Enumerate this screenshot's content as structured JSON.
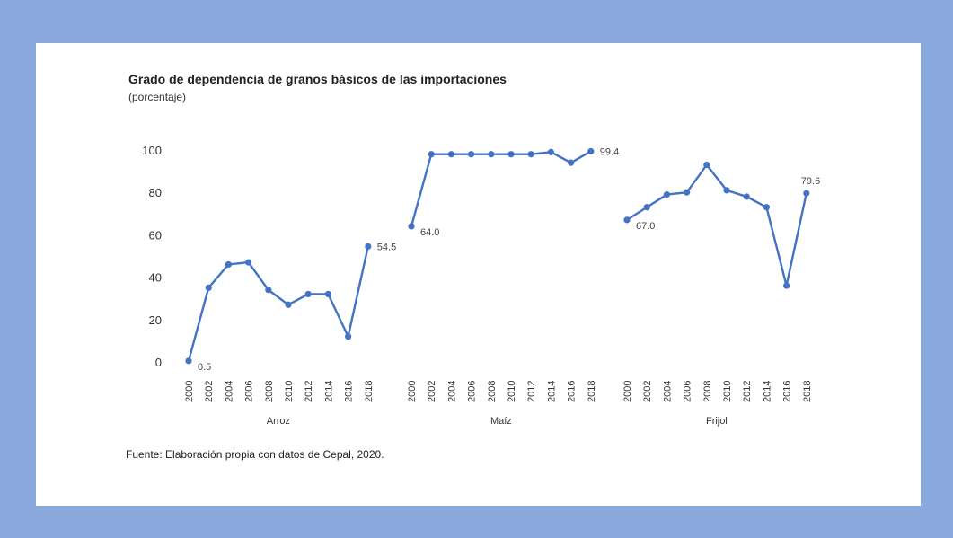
{
  "header": {
    "title": "Grado de dependencia de granos básicos de las importaciones",
    "subtitle": "(porcentaje)"
  },
  "footer": {
    "source": "Fuente: Elaboración propia con datos de Cepal, 2020."
  },
  "colors": {
    "frame": "#8aa9dc",
    "line": "#4472c4",
    "background": "#ffffff"
  },
  "chart_data": {
    "type": "line",
    "title": "Grado de dependencia de granos básicos de las importaciones",
    "subtitle": "(porcentaje)",
    "ylim": [
      0,
      100
    ],
    "yticks": [
      0,
      20,
      40,
      60,
      80,
      100
    ],
    "grid": false,
    "legend": "none",
    "x": [
      "2000",
      "2002",
      "2004",
      "2006",
      "2008",
      "2010",
      "2012",
      "2014",
      "2016",
      "2018"
    ],
    "series": [
      {
        "name": "Arroz",
        "values": [
          0.5,
          35,
          46,
          47,
          34,
          27,
          32,
          32,
          12,
          54.5
        ],
        "labels": [
          {
            "index": 0,
            "text": "0.5"
          },
          {
            "index": 9,
            "text": "54.5"
          }
        ]
      },
      {
        "name": "Maíz",
        "values": [
          64.0,
          98,
          98,
          98,
          98,
          98,
          98,
          99,
          94,
          99.4
        ],
        "labels": [
          {
            "index": 0,
            "text": "64.0"
          },
          {
            "index": 9,
            "text": "99.4"
          }
        ]
      },
      {
        "name": "Frijol",
        "values": [
          67.0,
          73,
          79,
          80,
          93,
          81,
          78,
          73,
          36,
          79.6
        ],
        "labels": [
          {
            "index": 0,
            "text": "67.0"
          },
          {
            "index": 9,
            "text": "79.6"
          }
        ]
      }
    ]
  }
}
